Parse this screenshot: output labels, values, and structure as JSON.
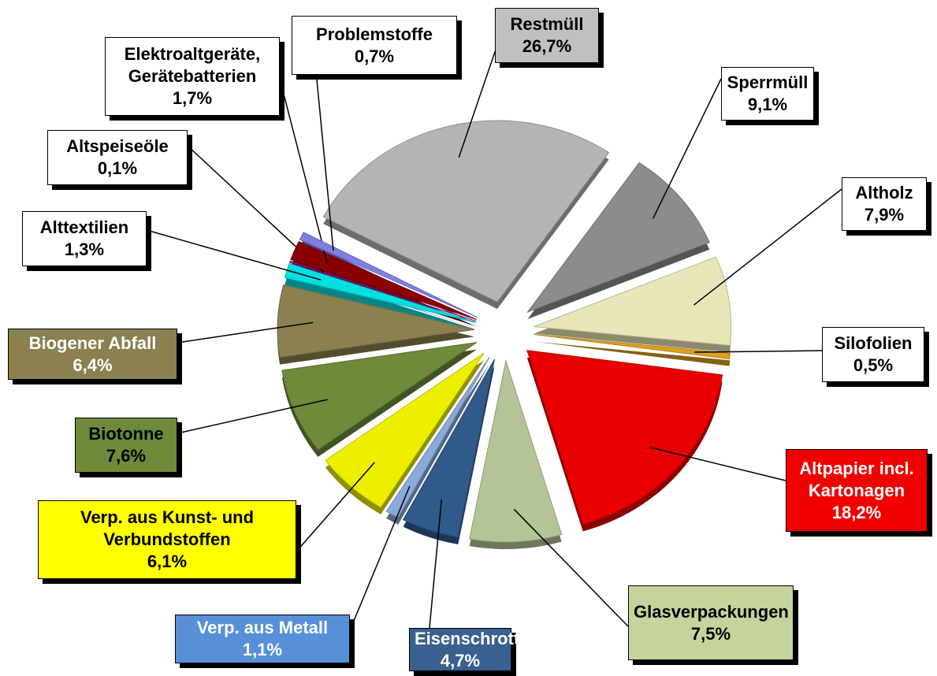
{
  "chart_data": {
    "type": "pie",
    "categories": [
      "Restmüll",
      "Sperrmüll",
      "Altholz",
      "Silofolien",
      "Altpapier incl. Kartonagen",
      "Glasverpackungen",
      "Eisenschrott",
      "Verp. aus Metall",
      "Verp. aus Kunst- und Verbundstoffen",
      "Biotonne",
      "Biogener Abfall",
      "Alttextilien",
      "Altspeiseöle",
      "Elektroaltgeräte, Gerätebatterien",
      "Problemstoffe"
    ],
    "values": [
      26.7,
      9.1,
      7.9,
      0.5,
      18.2,
      7.5,
      4.7,
      1.1,
      6.1,
      7.6,
      6.4,
      1.3,
      0.1,
      1.7,
      0.7
    ],
    "value_labels": [
      "26,7%",
      "9,1%",
      "7,9%",
      "0,5%",
      "18,2%",
      "7,5%",
      "4,7%",
      "1,1%",
      "6,1%",
      "7,6%",
      "6,4%",
      "1,3%",
      "0,1%",
      "1,7%",
      "0,7%"
    ],
    "colors": [
      "#b4b4b4",
      "#8c8c8c",
      "#e8e6b8",
      "#e0a020",
      "#e80000",
      "#b4c496",
      "#2f5a8a",
      "#8aaad8",
      "#eeee00",
      "#6e8a3a",
      "#8a8050",
      "#00e0e0",
      "#a000a0",
      "#8a0000",
      "#8080e0"
    ]
  }
}
